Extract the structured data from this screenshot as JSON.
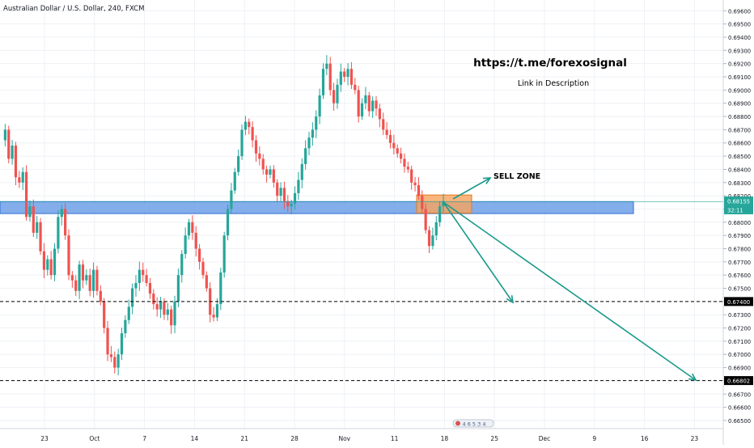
{
  "chart_data": {
    "type": "candlestick",
    "symbol_label": "Australian Dollar / U.S. Dollar, 240, FXCM",
    "ylim": [
      0.6646,
      0.6966
    ],
    "y_ticks": [
      "0.69600",
      "0.69500",
      "0.69400",
      "0.69300",
      "0.69200",
      "0.69100",
      "0.69000",
      "0.68900",
      "0.68800",
      "0.68700",
      "0.68600",
      "0.68500",
      "0.68400",
      "0.68300",
      "0.68200",
      "0.68100",
      "0.68000",
      "0.67900",
      "0.67800",
      "0.67700",
      "0.67600",
      "0.67500",
      "0.67400",
      "0.67300",
      "0.67200",
      "0.67100",
      "0.67000",
      "0.66900",
      "0.66800",
      "0.66700",
      "0.66600",
      "0.66500"
    ],
    "x_ticks": [
      "23",
      "Oct",
      "7",
      "14",
      "21",
      "28",
      "Nov",
      "11",
      "18",
      "25",
      "Dec",
      "9",
      "16",
      "23"
    ],
    "price_badges": [
      {
        "label": "0.68155",
        "kind": "current"
      },
      {
        "label": "32:11",
        "kind": "countdown"
      },
      {
        "label": "0.67400",
        "kind": "level"
      },
      {
        "label": "0.66802",
        "kind": "level"
      }
    ],
    "annotations": {
      "url_text": "https://t.me/forexosignal",
      "subtitle_text": "Link in Description",
      "sell_zone_label": "SELL ZONE",
      "watermark_text": "4 6 5 3 4"
    },
    "levels": [
      0.674,
      0.66802
    ],
    "current_price": 0.68155,
    "zone_blue": [
      0.6809,
      0.6815
    ],
    "zone_orange": [
      0.681,
      0.682
    ],
    "colors": {
      "up": "#26a69a",
      "down": "#ef5350",
      "zone_blue": "#6fa0e8",
      "zone_orange": "#f7a35c",
      "arrow": "#1b9a8a",
      "grid": "#eef1f5"
    },
    "price_path": [
      0.6862,
      0.687,
      0.6848,
      0.6858,
      0.6834,
      0.683,
      0.6838,
      0.6804,
      0.6812,
      0.6792,
      0.68,
      0.6778,
      0.6764,
      0.6772,
      0.676,
      0.678,
      0.6804,
      0.681,
      0.679,
      0.676,
      0.6756,
      0.6748,
      0.6768,
      0.6756,
      0.676,
      0.6748,
      0.6764,
      0.6748,
      0.674,
      0.672,
      0.67,
      0.6698,
      0.669,
      0.67,
      0.6716,
      0.6726,
      0.6736,
      0.675,
      0.6754,
      0.6764,
      0.676,
      0.6754,
      0.6746,
      0.6738,
      0.6734,
      0.674,
      0.673,
      0.6734,
      0.6722,
      0.674,
      0.676,
      0.6776,
      0.679,
      0.68,
      0.6792,
      0.678,
      0.677,
      0.676,
      0.675,
      0.673,
      0.6728,
      0.6738,
      0.6762,
      0.679,
      0.681,
      0.6824,
      0.6838,
      0.685,
      0.687,
      0.6876,
      0.6872,
      0.6862,
      0.6852,
      0.6848,
      0.684,
      0.6836,
      0.684,
      0.683,
      0.682,
      0.6826,
      0.6816,
      0.6812,
      0.6814,
      0.6822,
      0.6832,
      0.6844,
      0.6856,
      0.6864,
      0.687,
      0.688,
      0.6896,
      0.6916,
      0.692,
      0.69,
      0.689,
      0.6904,
      0.6914,
      0.691,
      0.6916,
      0.6904,
      0.69,
      0.688,
      0.689,
      0.6896,
      0.6884,
      0.6892,
      0.6886,
      0.6878,
      0.687,
      0.6866,
      0.686,
      0.6856,
      0.6852,
      0.6848,
      0.6842,
      0.684,
      0.683,
      0.6828,
      0.682,
      0.681,
      0.6794,
      0.6782,
      0.679,
      0.68,
      0.6812,
      0.6816
    ]
  }
}
